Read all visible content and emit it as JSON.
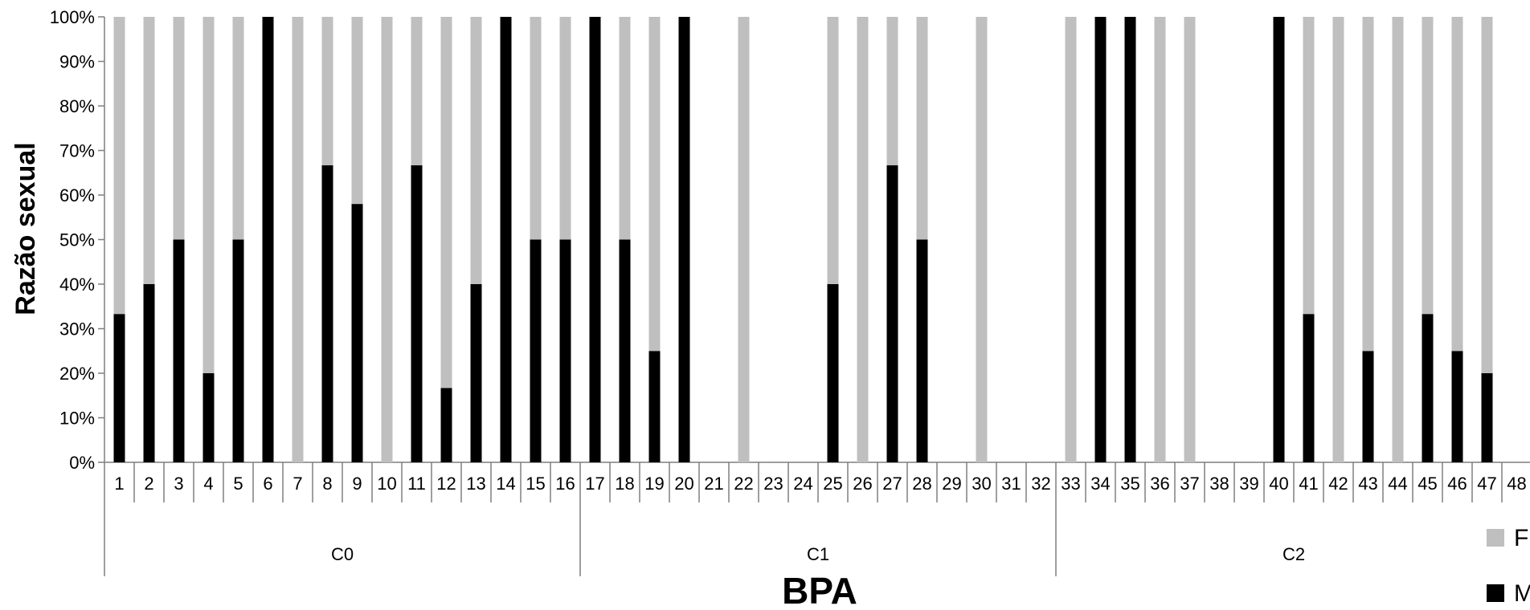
{
  "chart_data": {
    "type": "bar",
    "stacked": true,
    "percent": true,
    "title": "",
    "xlabel": "BPA",
    "ylabel": "Razão sexual",
    "ylim": [
      0,
      100
    ],
    "yticks": [
      "0%",
      "10%",
      "20%",
      "30%",
      "40%",
      "50%",
      "60%",
      "70%",
      "80%",
      "90%",
      "100%"
    ],
    "categories": [
      "1",
      "2",
      "3",
      "4",
      "5",
      "6",
      "7",
      "8",
      "9",
      "10",
      "11",
      "12",
      "13",
      "14",
      "15",
      "16",
      "17",
      "18",
      "19",
      "20",
      "21",
      "22",
      "23",
      "24",
      "25",
      "26",
      "27",
      "28",
      "29",
      "30",
      "31",
      "32",
      "33",
      "34",
      "35",
      "36",
      "37",
      "38",
      "39",
      "40",
      "41",
      "42",
      "43",
      "44",
      "45",
      "46",
      "47",
      "48"
    ],
    "groups": [
      {
        "label": "C0",
        "start": 1,
        "end": 16
      },
      {
        "label": "C1",
        "start": 17,
        "end": 32
      },
      {
        "label": "C2",
        "start": 33,
        "end": 48
      }
    ],
    "series": [
      {
        "name": "M",
        "color": "#000000",
        "values": [
          33.3,
          40,
          50,
          20,
          50,
          100,
          0,
          66.7,
          58,
          0,
          66.7,
          16.7,
          40,
          100,
          50,
          50,
          100,
          50,
          25,
          100,
          0,
          0,
          0,
          0,
          40,
          0,
          66.7,
          50,
          0,
          0,
          0,
          0,
          0,
          100,
          100,
          0,
          0,
          0,
          0,
          100,
          33.3,
          0,
          25,
          0,
          33.3,
          25,
          20,
          null
        ]
      },
      {
        "name": "F",
        "color": "#bfbfbf",
        "values": [
          66.7,
          60,
          50,
          80,
          50,
          0,
          100,
          33.3,
          42,
          100,
          33.3,
          83.3,
          60,
          0,
          50,
          50,
          0,
          50,
          75,
          0,
          0,
          100,
          0,
          0,
          60,
          100,
          33.3,
          50,
          0,
          100,
          0,
          0,
          100,
          0,
          0,
          100,
          100,
          0,
          0,
          0,
          66.7,
          100,
          75,
          100,
          66.7,
          75,
          80,
          null
        ]
      }
    ],
    "legend": {
      "position": "bottom-right",
      "labels": [
        "F",
        "M"
      ]
    },
    "grid": false
  }
}
